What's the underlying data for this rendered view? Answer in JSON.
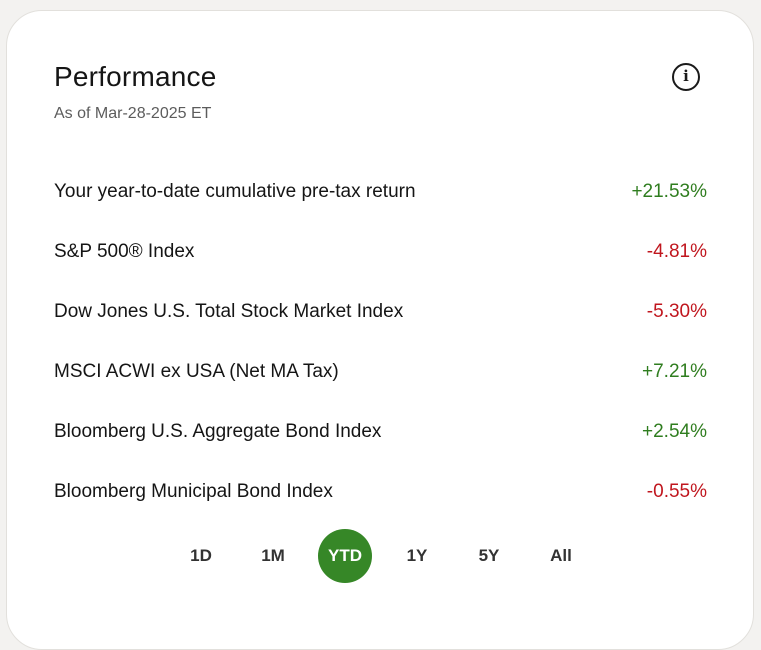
{
  "card": {
    "title": "Performance",
    "as_of": "As of Mar-28-2025 ET"
  },
  "icons": {
    "info": "info-icon"
  },
  "rows": [
    {
      "label": "Your year-to-date cumulative pre-tax return",
      "value": "+21.53%",
      "trend": "positive"
    },
    {
      "label": "S&P 500® Index",
      "value": "-4.81%",
      "trend": "negative"
    },
    {
      "label": "Dow Jones U.S. Total Stock Market Index",
      "value": "-5.30%",
      "trend": "negative"
    },
    {
      "label": "MSCI ACWI ex USA (Net MA Tax)",
      "value": "+7.21%",
      "trend": "positive"
    },
    {
      "label": "Bloomberg U.S. Aggregate Bond Index",
      "value": "+2.54%",
      "trend": "positive"
    },
    {
      "label": "Bloomberg Municipal Bond Index",
      "value": "-0.55%",
      "trend": "negative"
    }
  ],
  "periods": [
    "1D",
    "1M",
    "YTD",
    "1Y",
    "5Y",
    "All"
  ],
  "selected_period": "YTD",
  "colors": {
    "positive": "#2f7d1f",
    "negative": "#c0161e",
    "accent": "#368727"
  }
}
